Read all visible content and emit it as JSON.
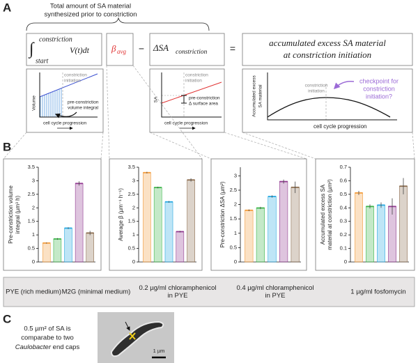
{
  "panelA": {
    "letter": "A",
    "brace_lines": [
      "Total amount of SA material",
      "synthesized prior to constriction"
    ],
    "integral_sign": "∫",
    "integral_upper": "constriction",
    "integral_lower": "start",
    "integrand": "V(t)dt",
    "beta": "β",
    "beta_sub": "avg",
    "minus": "−",
    "delta_sa": "ΔSA",
    "delta_sa_sub": "constriction",
    "equals": "=",
    "result_lines": [
      "accumulated excess SA material",
      "at constriction initiation"
    ],
    "schematic1": {
      "marker_lines": [
        "constriction",
        "initiation"
      ],
      "ylabel": "Volume",
      "note_lines": [
        "pre-constriction",
        "volume integral"
      ],
      "xlabel": "cell cycle progression"
    },
    "schematic2": {
      "marker_lines": [
        "constriction",
        "initiation"
      ],
      "ylabel": "SA",
      "note_lines": [
        "pre-constriction",
        "Δ surface area"
      ],
      "xlabel": "cell cycle progression"
    },
    "schematic3": {
      "marker_lines": [
        "constriction",
        "initiation"
      ],
      "ylabel_lines": [
        "Accumulated excess",
        "SA material"
      ],
      "note_lines": [
        "checkpoint for",
        "constriction",
        "initiation?"
      ],
      "xlabel": "cell cycle progression"
    }
  },
  "panelB": {
    "letter": "B"
  },
  "legend": [
    {
      "label": [
        "PYE (rich medium)"
      ],
      "color": "#f39c3c"
    },
    {
      "label": [
        "M2G (minimal medium)"
      ],
      "color": "#3db54a"
    },
    {
      "label": [
        "0.2 µg/ml chloramphenicol",
        "in PYE"
      ],
      "color": "#27a9e1"
    },
    {
      "label": [
        "0.4 µg/ml chloramphenicol",
        "in PYE"
      ],
      "color": "#923b91"
    },
    {
      "label": [
        "1 µg/ml fosfomycin"
      ],
      "color": "#8c6d4f"
    }
  ],
  "chart_data": [
    {
      "type": "bar",
      "ylabel": [
        "Pre-constriction volume",
        "integral (µm³ h)"
      ],
      "values": [
        0.7,
        0.85,
        1.25,
        2.9,
        1.07
      ],
      "errors": [
        0.02,
        0.03,
        0.03,
        0.08,
        0.08
      ],
      "ylim": [
        0,
        3.5
      ],
      "yticks": [
        0,
        0.5,
        1,
        1.5,
        2,
        2.5,
        3,
        3.5
      ]
    },
    {
      "type": "bar",
      "ylabel": [
        "Average β (µm⁻¹ h⁻¹)"
      ],
      "values": [
        3.3,
        2.75,
        2.22,
        1.12,
        3.03
      ],
      "errors": [
        0.03,
        0.03,
        0.03,
        0.03,
        0.06
      ],
      "ylim": [
        0,
        3.5
      ],
      "yticks": [
        0,
        0.5,
        1,
        1.5,
        2,
        2.5,
        3,
        3.5
      ]
    },
    {
      "type": "bar",
      "ylabel": [
        "Pre-constriction ΔSA (µm²)"
      ],
      "values": [
        1.8,
        1.88,
        2.28,
        2.8,
        2.6
      ],
      "errors": [
        0.03,
        0.04,
        0.04,
        0.07,
        0.2
      ],
      "ylim": [
        0,
        3.3
      ],
      "yticks": [
        0,
        0.5,
        1,
        1.5,
        2,
        2.5,
        3
      ]
    },
    {
      "type": "bar",
      "ylabel": [
        "Accumulated excess SA",
        "material at constriction (µm²)"
      ],
      "values": [
        0.51,
        0.41,
        0.42,
        0.41,
        0.56
      ],
      "errors": [
        0.015,
        0.015,
        0.02,
        0.06,
        0.06
      ],
      "ylim": [
        0,
        0.7
      ],
      "yticks": [
        0,
        0.1,
        0.2,
        0.3,
        0.4,
        0.5,
        0.6,
        0.7
      ]
    }
  ],
  "panelC": {
    "letter": "C",
    "text_lines": [
      "0.5 µm² of SA is",
      "comparabe to two"
    ],
    "species": "Caulobacter",
    "text_tail": " end caps",
    "scale_label": "1 µm"
  }
}
